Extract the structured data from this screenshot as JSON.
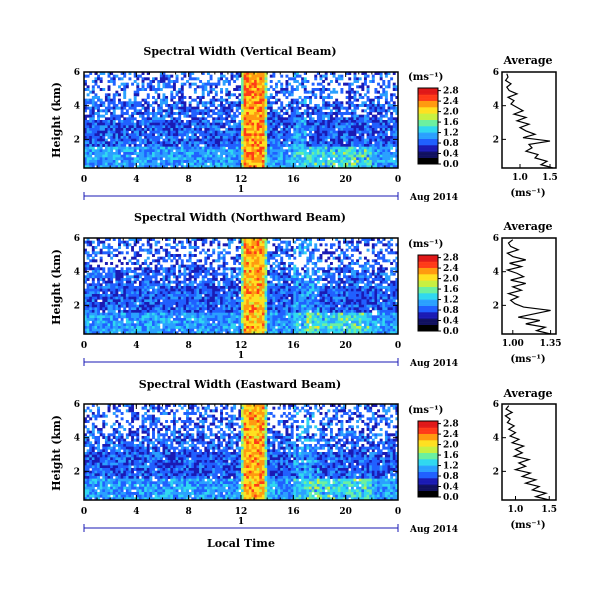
{
  "colors": {
    "scale": [
      "#000000",
      "#101060",
      "#1a1ab4",
      "#2060ff",
      "#2aa0ff",
      "#30d8f0",
      "#6cf0a0",
      "#c8f040",
      "#ffe020",
      "#ff9a10",
      "#ff3a18",
      "#e01818"
    ],
    "gap": "#ffffff"
  },
  "x_axis_label": "Local Time",
  "date_label": "Aug 2014",
  "day_label": "1",
  "colorbar_unit": "(ms⁻¹)",
  "chart_data": [
    {
      "type": "heatmap",
      "title": "Spectral Width (Vertical Beam)",
      "ylabel": "Height (km)",
      "xlim": [
        0,
        24
      ],
      "ylim": [
        0.3,
        6
      ],
      "xticks": [
        "0",
        "4",
        "8",
        "12",
        "16",
        "20",
        "0"
      ],
      "yticks": [
        "2",
        "4",
        "6"
      ],
      "colorbar": {
        "min": 0.0,
        "max": 2.9,
        "ticks": [
          "0.0",
          "0.4",
          "0.8",
          "1.2",
          "1.6",
          "2.0",
          "2.4",
          "2.8"
        ]
      },
      "bright_band_hours": [
        12,
        14
      ],
      "bright_band_value": 2.6,
      "secondary_feature_hours": [
        16,
        17
      ]
    },
    {
      "type": "heatmap",
      "title": "Spectral Width (Northward Beam)",
      "ylabel": "Height (km)",
      "xlim": [
        0,
        24
      ],
      "ylim": [
        0.3,
        6
      ],
      "xticks": [
        "0",
        "4",
        "8",
        "12",
        "16",
        "20",
        "0"
      ],
      "yticks": [
        "2",
        "4",
        "6"
      ],
      "colorbar": {
        "min": 0.0,
        "max": 2.9,
        "ticks": [
          "0.0",
          "0.4",
          "0.8",
          "1.2",
          "1.6",
          "2.0",
          "2.4",
          "2.8"
        ]
      },
      "bright_band_hours": [
        12,
        14
      ],
      "bright_band_value": 2.5,
      "secondary_feature_hours": [
        16,
        18
      ]
    },
    {
      "type": "heatmap",
      "title": "Spectral Width (Eastward Beam)",
      "ylabel": "Height (km)",
      "xlim": [
        0,
        24
      ],
      "ylim": [
        0.3,
        6
      ],
      "xticks": [
        "0",
        "4",
        "8",
        "12",
        "16",
        "20",
        "0"
      ],
      "yticks": [
        "2",
        "4",
        "6"
      ],
      "colorbar": {
        "min": 0.0,
        "max": 2.9,
        "ticks": [
          "0.0",
          "0.4",
          "0.8",
          "1.2",
          "1.6",
          "2.0",
          "2.4",
          "2.8"
        ]
      },
      "bright_band_hours": [
        12,
        14
      ],
      "bright_band_value": 2.5,
      "secondary_feature_hours": [
        16,
        18
      ]
    },
    {
      "type": "line",
      "title": "Average",
      "xlabel": "(ms⁻¹)",
      "xlim": [
        0.7,
        1.6
      ],
      "ylim": [
        0.3,
        6
      ],
      "xticks": [
        "1.0",
        "1.5"
      ],
      "yticks": [
        "2",
        "4",
        "6"
      ],
      "heights": [
        0.3,
        0.5,
        0.7,
        0.9,
        1.1,
        1.3,
        1.5,
        1.7,
        1.9,
        2.1,
        2.3,
        2.5,
        2.7,
        2.9,
        3.1,
        3.3,
        3.5,
        3.7,
        3.9,
        4.1,
        4.3,
        4.5,
        4.7,
        4.9,
        5.1,
        5.3,
        5.5,
        5.7,
        5.9
      ],
      "values": [
        1.55,
        1.35,
        1.45,
        1.25,
        1.3,
        1.1,
        1.2,
        1.15,
        1.5,
        1.05,
        1.25,
        1.1,
        1.0,
        1.15,
        0.95,
        1.1,
        0.9,
        1.05,
        0.95,
        0.85,
        0.9,
        0.8,
        0.95,
        0.82,
        0.78,
        0.85,
        0.76,
        0.8,
        0.78
      ]
    },
    {
      "type": "line",
      "title": "Average",
      "xlabel": "(ms⁻¹)",
      "xlim": [
        0.9,
        1.4
      ],
      "ylim": [
        0.3,
        6
      ],
      "xticks": [
        "1.00",
        "1.35"
      ],
      "yticks": [
        "2",
        "4",
        "6"
      ],
      "heights": [
        0.3,
        0.5,
        0.7,
        0.9,
        1.1,
        1.3,
        1.5,
        1.7,
        1.9,
        2.1,
        2.3,
        2.5,
        2.7,
        2.9,
        3.1,
        3.3,
        3.5,
        3.7,
        3.9,
        4.1,
        4.3,
        4.5,
        4.7,
        4.9,
        5.1,
        5.3,
        5.5,
        5.7,
        5.9
      ],
      "values": [
        1.35,
        1.22,
        1.3,
        1.12,
        1.25,
        1.05,
        1.2,
        1.35,
        1.1,
        1.02,
        0.98,
        1.05,
        0.96,
        1.08,
        1.0,
        1.12,
        0.98,
        1.1,
        1.04,
        0.95,
        1.08,
        0.97,
        1.12,
        1.0,
        0.95,
        1.05,
        0.98,
        0.96,
        1.0
      ]
    },
    {
      "type": "line",
      "title": "Average",
      "xlabel": "(ms⁻¹)",
      "xlim": [
        0.8,
        1.6
      ],
      "ylim": [
        0.3,
        6
      ],
      "xticks": [
        "1.0",
        "1.5"
      ],
      "yticks": [
        "2",
        "4",
        "6"
      ],
      "heights": [
        0.3,
        0.5,
        0.7,
        0.9,
        1.1,
        1.3,
        1.5,
        1.7,
        1.9,
        2.1,
        2.3,
        2.5,
        2.7,
        2.9,
        3.1,
        3.3,
        3.5,
        3.7,
        3.9,
        4.1,
        4.3,
        4.5,
        4.7,
        4.9,
        5.1,
        5.3,
        5.5,
        5.7,
        5.9
      ],
      "values": [
        1.5,
        1.3,
        1.45,
        1.25,
        1.35,
        1.15,
        1.3,
        1.1,
        1.22,
        1.0,
        1.15,
        1.05,
        1.2,
        0.98,
        1.1,
        1.0,
        1.12,
        0.95,
        1.05,
        0.92,
        1.0,
        0.9,
        0.98,
        0.88,
        0.92,
        0.85,
        0.95,
        0.86,
        0.9
      ]
    }
  ]
}
